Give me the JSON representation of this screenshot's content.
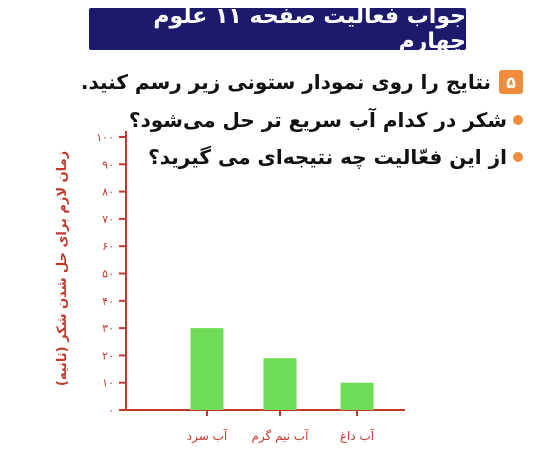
{
  "header": {
    "title": "جواب فعالیت صفحه ۱۱ علوم چهارم"
  },
  "task": {
    "number": "۵",
    "instruction": "نتایج را روی نمودار ستونی زیر رسم کنید.",
    "questions": [
      "شکر در کدام آب سریع تر حل می‌شود؟",
      "از این فعّالیت چه نتیجه‌ای می گیرید؟"
    ]
  },
  "colors": {
    "banner": "#1d1a6e",
    "accent": "#f08c3c",
    "axis": "#c0392b",
    "bar": "#6fdc5a"
  },
  "chart_data": {
    "type": "bar",
    "ylabel": "زمان لازم برای حل شدن شکر (ثانیه)",
    "xlabel": "",
    "ylim": [
      0,
      100
    ],
    "yticks": [
      0,
      10,
      20,
      30,
      40,
      50,
      60,
      70,
      80,
      90,
      100
    ],
    "ytick_labels": [
      "۰",
      "۱۰",
      "۲۰",
      "۳۰",
      "۴۰",
      "۵۰",
      "۶۰",
      "۷۰",
      "۸۰",
      "۹۰",
      "۱۰۰"
    ],
    "categories": [
      "آب سرد",
      "آب نیم گرم",
      "آب داغ"
    ],
    "values": [
      30,
      19,
      10
    ],
    "grid": false
  }
}
